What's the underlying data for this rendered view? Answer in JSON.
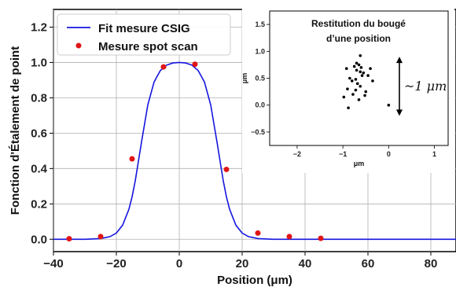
{
  "chart_data": [
    {
      "type": "line",
      "xlabel": "Position (μm)",
      "ylabel": "Fonction d'Étalement de point",
      "xlim": [
        -40,
        88
      ],
      "ylim": [
        -0.07,
        1.3
      ],
      "xticks": [
        -40,
        -20,
        0,
        20,
        40,
        60,
        80
      ],
      "yticks": [
        0.0,
        0.2,
        0.4,
        0.6,
        0.8,
        1.0,
        1.2
      ],
      "xtick_labels": [
        "−40",
        "−20",
        "0",
        "20",
        "40",
        "60",
        "80"
      ],
      "ytick_labels": [
        "0.0",
        "0.2",
        "0.4",
        "0.6",
        "0.8",
        "1.0",
        "1.2"
      ],
      "grid": true,
      "legend_position": "top-left",
      "series": [
        {
          "name": "Fit mesure CSIG",
          "kind": "line",
          "color": "#1515e0",
          "x": [
            -40,
            -30,
            -25,
            -22,
            -20,
            -18,
            -16,
            -15,
            -14,
            -12,
            -10,
            -8,
            -6,
            -4,
            -2,
            0,
            2,
            4,
            6,
            8,
            10,
            12,
            14,
            15,
            16,
            18,
            20,
            22,
            25,
            30,
            40,
            50,
            60,
            70,
            80,
            88
          ],
          "y": [
            0.0,
            0.0,
            0.004,
            0.015,
            0.035,
            0.08,
            0.17,
            0.24,
            0.33,
            0.55,
            0.76,
            0.89,
            0.955,
            0.985,
            0.997,
            1.0,
            0.997,
            0.985,
            0.955,
            0.89,
            0.76,
            0.55,
            0.33,
            0.24,
            0.17,
            0.08,
            0.035,
            0.015,
            0.004,
            0.0,
            0.0,
            0.0,
            0.0,
            0.0,
            0.0,
            0.0
          ]
        },
        {
          "name": "Mesure spot scan",
          "kind": "scatter",
          "color": "#e01515",
          "x": [
            -35,
            -25,
            -15,
            -5,
            5,
            15,
            25,
            35,
            45
          ],
          "y": [
            0.003,
            0.015,
            0.455,
            0.975,
            0.99,
            0.395,
            0.035,
            0.015,
            0.005
          ]
        }
      ]
    },
    {
      "type": "scatter",
      "title": "Restitution du bougé d’une position",
      "title_lines": [
        "Restitution du bougé",
        "d’une position"
      ],
      "xlabel": "μm",
      "ylabel": "μm",
      "xlim": [
        -2.6,
        1.3
      ],
      "ylim": [
        -0.75,
        1.75
      ],
      "xticks": [
        -2,
        -1,
        0,
        1
      ],
      "yticks": [
        -0.5,
        0.0,
        0.5,
        1.0,
        1.5
      ],
      "xtick_labels": [
        "−2",
        "−1",
        "0",
        "1"
      ],
      "ytick_labels": [
        "−0.5",
        "0.0",
        "0.5",
        "1.0",
        "1.5"
      ],
      "grid": false,
      "annotation": "~1 μm",
      "annotation_range": [
        -0.2,
        0.9
      ],
      "series": [
        {
          "color": "#000000",
          "x": [
            -0.62,
            -0.92,
            -0.7,
            -0.65,
            -0.6,
            -0.75,
            -0.85,
            -0.8,
            -0.55,
            -0.45,
            -0.4,
            -0.62,
            -0.68,
            -0.72,
            -0.5,
            -0.9,
            -0.58,
            -0.78,
            -0.65,
            -0.52,
            -0.98,
            -0.88,
            -0.35,
            -0.7,
            -0.62,
            0.0,
            -0.72
          ],
          "y": [
            0.92,
            0.68,
            0.78,
            0.75,
            0.7,
            0.72,
            0.5,
            0.45,
            0.6,
            0.55,
            0.68,
            0.35,
            0.4,
            0.48,
            0.25,
            0.3,
            0.55,
            0.2,
            0.1,
            0.18,
            0.15,
            -0.05,
            0.45,
            0.65,
            0.62,
            0.0,
            0.28
          ]
        }
      ]
    }
  ]
}
